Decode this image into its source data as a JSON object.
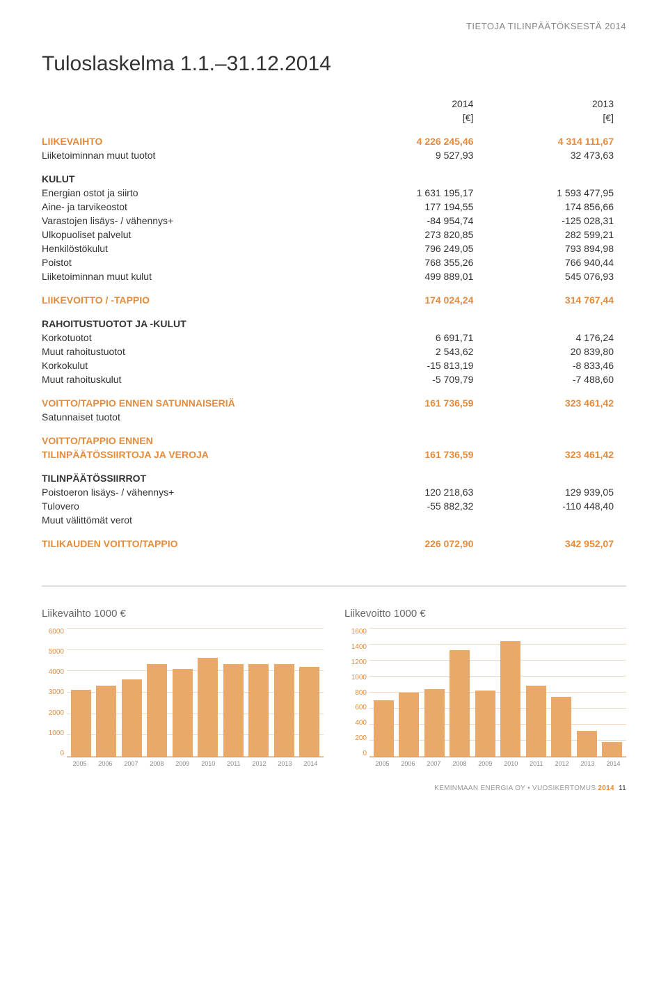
{
  "header": "TIETOJA TILINPÄÄTÖKSESTÄ 2014",
  "title": "Tuloslaskelma 1.1.–31.12.2014",
  "col1": {
    "year": "2014",
    "unit": "[€]"
  },
  "col2": {
    "year": "2013",
    "unit": "[€]"
  },
  "rows": {
    "liikevaihto": {
      "label": "LIIKEVAIHTO",
      "v1": "4 226 245,46",
      "v2": "4 314 111,67"
    },
    "muut_tuotot": {
      "label": "Liiketoiminnan muut tuotot",
      "v1": "9 527,93",
      "v2": "32 473,63"
    },
    "kulut_hdr": {
      "label": "KULUT"
    },
    "energia": {
      "label": "Energian ostot ja siirto",
      "v1": "1 631 195,17",
      "v2": "1 593 477,95"
    },
    "aine": {
      "label": "Aine- ja tarvikeostot",
      "v1": "177 194,55",
      "v2": "174 856,66"
    },
    "varasto": {
      "label": "Varastojen lisäys- / vähennys+",
      "v1": "-84 954,74",
      "v2": "-125 028,31"
    },
    "ulko": {
      "label": "Ulkopuoliset palvelut",
      "v1": "273 820,85",
      "v2": "282 599,21"
    },
    "henkilosto": {
      "label": "Henkilöstökulut",
      "v1": "796 249,05",
      "v2": "793 894,98"
    },
    "poistot": {
      "label": "Poistot",
      "v1": "768 355,26",
      "v2": "766 940,44"
    },
    "muut_kulut": {
      "label": "Liiketoiminnan muut kulut",
      "v1": "499 889,01",
      "v2": "545 076,93"
    },
    "liikevoitto": {
      "label": "LIIKEVOITTO / -TAPPIO",
      "v1": "174 024,24",
      "v2": "314 767,44"
    },
    "rahoitus_hdr": {
      "label": "RAHOITUSTUOTOT JA -KULUT"
    },
    "korkotuotot": {
      "label": "Korkotuotot",
      "v1": "6 691,71",
      "v2": "4 176,24"
    },
    "muut_rtuotot": {
      "label": "Muut rahoitustuotot",
      "v1": "2 543,62",
      "v2": "20 839,80"
    },
    "korkokulut": {
      "label": "Korkokulut",
      "v1": "-15 813,19",
      "v2": "-8 833,46"
    },
    "muut_rkulut": {
      "label": "Muut rahoituskulut",
      "v1": "-5 709,79",
      "v2": "-7 488,60"
    },
    "voitto_sat": {
      "label": "VOITTO/TAPPIO ENNEN SATUNNAISERIÄ",
      "v1": "161 736,59",
      "v2": "323 461,42"
    },
    "satunnaiset": {
      "label": "Satunnaiset tuotot"
    },
    "voitto_tp1": {
      "label": "VOITTO/TAPPIO ENNEN"
    },
    "voitto_tp2": {
      "label": "TILINPÄÄTÖSSIIRTOJA JA VEROJA",
      "v1": "161 736,59",
      "v2": "323 461,42"
    },
    "tps_hdr": {
      "label": "TILINPÄÄTÖSSIIRROT"
    },
    "poistoero": {
      "label": "Poistoeron lisäys- / vähennys+",
      "v1": "120 218,63",
      "v2": "129 939,05"
    },
    "tulovero": {
      "label": "Tulovero",
      "v1": "-55 882,32",
      "v2": "-110 448,40"
    },
    "muut_verot": {
      "label": "Muut välittömät verot"
    },
    "tilikausi": {
      "label": "TILIKAUDEN VOITTO/TAPPIO",
      "v1": "226 072,90",
      "v2": "342 952,07"
    }
  },
  "chart1": {
    "title": "Liikevaihto 1000 €",
    "type": "bar",
    "categories": [
      "2005",
      "2006",
      "2007",
      "2008",
      "2009",
      "2010",
      "2011",
      "2012",
      "2013",
      "2014"
    ],
    "values": [
      3100,
      3300,
      3600,
      4300,
      4100,
      4600,
      4300,
      4300,
      4300,
      4200
    ],
    "ymax": 6000,
    "ymin": 0,
    "ytick_step": 1000,
    "bar_color": "#e9a96a",
    "grid_color": "#f2d9c2",
    "axis_color": "#e58b3a",
    "bg": "#ffffff"
  },
  "chart2": {
    "title": "Liikevoitto 1000 €",
    "type": "bar",
    "categories": [
      "2005",
      "2006",
      "2007",
      "2008",
      "2009",
      "2010",
      "2011",
      "2012",
      "2013",
      "2014"
    ],
    "values": [
      700,
      800,
      840,
      1320,
      820,
      1440,
      880,
      740,
      320,
      180
    ],
    "ymax": 1600,
    "ymin": 0,
    "ytick_step": 200,
    "bar_color": "#e9a96a",
    "grid_color": "#f2d9c2",
    "axis_color": "#e58b3a",
    "bg": "#ffffff"
  },
  "footer": {
    "company": "KEMINMAAN ENERGIA OY",
    "sep": "•",
    "doc": "VUOSIKERTOMUS",
    "year": "2014",
    "page": "11"
  }
}
